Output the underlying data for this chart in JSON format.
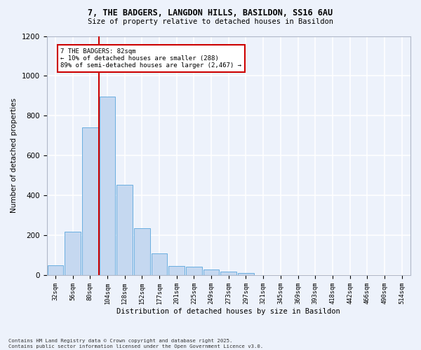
{
  "title1": "7, THE BADGERS, LANGDON HILLS, BASILDON, SS16 6AU",
  "title2": "Size of property relative to detached houses in Basildon",
  "xlabel": "Distribution of detached houses by size in Basildon",
  "ylabel": "Number of detached properties",
  "bin_labels": [
    "32sqm",
    "56sqm",
    "80sqm",
    "104sqm",
    "128sqm",
    "152sqm",
    "177sqm",
    "201sqm",
    "225sqm",
    "249sqm",
    "273sqm",
    "297sqm",
    "321sqm",
    "345sqm",
    "369sqm",
    "393sqm",
    "418sqm",
    "442sqm",
    "466sqm",
    "490sqm",
    "514sqm"
  ],
  "bar_values": [
    50,
    220,
    740,
    895,
    455,
    235,
    110,
    48,
    42,
    30,
    20,
    10,
    0,
    0,
    0,
    0,
    0,
    0,
    0,
    0,
    0
  ],
  "bar_color": "#c5d8f0",
  "bar_edge_color": "#6aaee0",
  "property_line_x": 2.5,
  "annotation_text": "7 THE BADGERS: 82sqm\n← 10% of detached houses are smaller (288)\n89% of semi-detached houses are larger (2,467) →",
  "vline_color": "#cc0000",
  "annotation_box_color": "#ffffff",
  "annotation_box_edge": "#cc0000",
  "footer_text": "Contains HM Land Registry data © Crown copyright and database right 2025.\nContains public sector information licensed under the Open Government Licence v3.0.",
  "ylim": [
    0,
    1200
  ],
  "background_color": "#edf2fb",
  "grid_color": "#ffffff"
}
